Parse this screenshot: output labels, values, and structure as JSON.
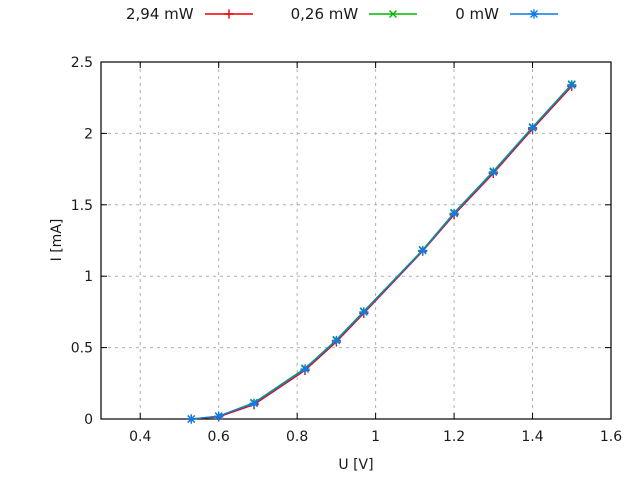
{
  "chart_data": {
    "type": "line",
    "title": "",
    "xlabel": "U [V]",
    "ylabel": "I [mA]",
    "xlim": [
      0.3,
      1.6
    ],
    "ylim": [
      0,
      2.5
    ],
    "grid": true,
    "legend_position": "top-outside-horizontal",
    "xticks": {
      "values": [
        0.4,
        0.6,
        0.8,
        1.0,
        1.2,
        1.4,
        1.6
      ],
      "labels": [
        "0.4",
        "0.6",
        "0.8",
        "1",
        "1.2",
        "1.4",
        "1.6"
      ]
    },
    "yticks": {
      "values": [
        0,
        0.5,
        1.0,
        1.5,
        2.0,
        2.5
      ],
      "labels": [
        "0",
        "0.5",
        "1",
        "1.5",
        "2",
        "2.5"
      ]
    },
    "x": [
      0.53,
      0.6,
      0.69,
      0.82,
      0.9,
      0.97,
      1.12,
      1.2,
      1.3,
      1.4,
      1.5
    ],
    "series": [
      {
        "name": "2,94 mW",
        "color": "#ee0000",
        "marker": "plus",
        "y": [
          0.0,
          0.015,
          0.1,
          0.34,
          0.54,
          0.74,
          1.175,
          1.43,
          1.72,
          2.03,
          2.33
        ]
      },
      {
        "name": "0,26 mW",
        "color": "#00b800",
        "marker": "cross",
        "y": [
          0.0,
          0.02,
          0.115,
          0.355,
          0.555,
          0.755,
          1.185,
          1.445,
          1.735,
          2.045,
          2.345
        ]
      },
      {
        "name": "0 mW",
        "color": "#0f7ae8",
        "marker": "star",
        "y": [
          0.0,
          0.02,
          0.11,
          0.35,
          0.55,
          0.75,
          1.18,
          1.44,
          1.73,
          2.04,
          2.34
        ]
      }
    ],
    "colors": {
      "grid": "#b0b0b0",
      "border": "#000000",
      "text": "#1a1a1a"
    }
  }
}
